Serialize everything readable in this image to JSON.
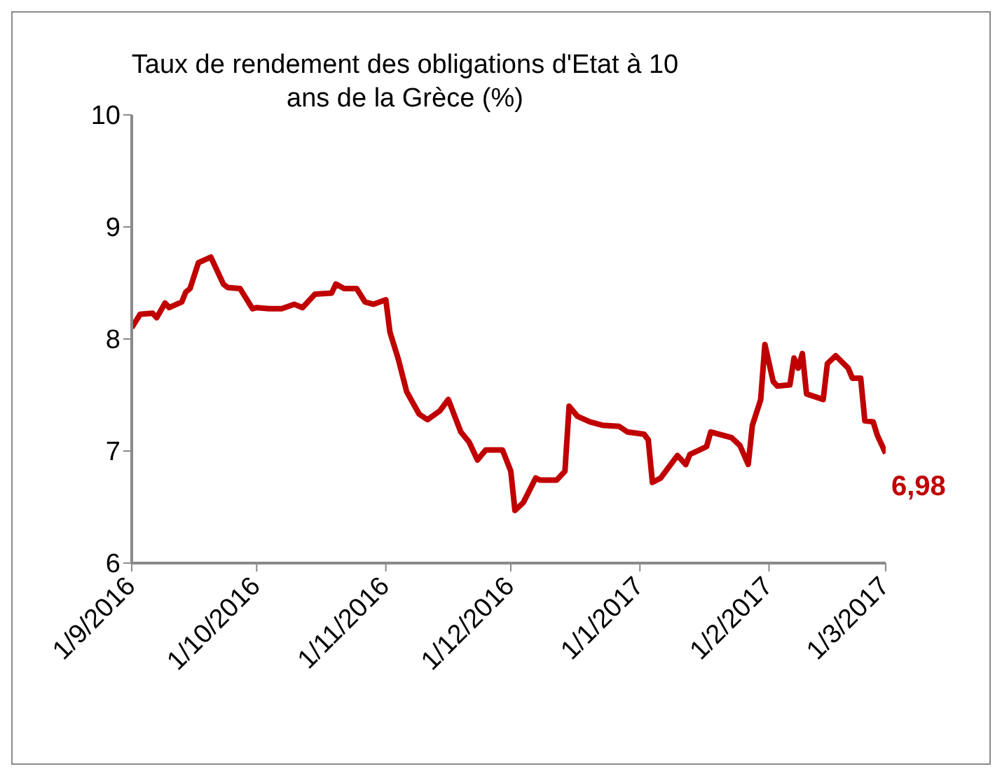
{
  "chart_data": {
    "type": "line",
    "title": "Taux de rendement des obligations d'Etat à 10 ans de la Grèce (%)",
    "x": [
      "2016-09-01",
      "2016-09-03",
      "2016-09-06",
      "2016-09-07",
      "2016-09-09",
      "2016-09-10",
      "2016-09-13",
      "2016-09-14",
      "2016-09-15",
      "2016-09-17",
      "2016-09-20",
      "2016-09-23",
      "2016-09-24",
      "2016-09-27",
      "2016-09-30",
      "2016-10-01",
      "2016-10-04",
      "2016-10-07",
      "2016-10-10",
      "2016-10-12",
      "2016-10-15",
      "2016-10-19",
      "2016-10-20",
      "2016-10-22",
      "2016-10-25",
      "2016-10-27",
      "2016-10-29",
      "2016-11-01",
      "2016-11-02",
      "2016-11-04",
      "2016-11-06",
      "2016-11-09",
      "2016-11-11",
      "2016-11-14",
      "2016-11-16",
      "2016-11-19",
      "2016-11-21",
      "2016-11-23",
      "2016-11-25",
      "2016-11-29",
      "2016-12-01",
      "2016-12-02",
      "2016-12-04",
      "2016-12-07",
      "2016-12-08",
      "2016-12-12",
      "2016-12-14",
      "2016-12-15",
      "2016-12-17",
      "2016-12-20",
      "2016-12-23",
      "2016-12-27",
      "2016-12-29",
      "2017-01-02",
      "2017-01-03",
      "2017-01-04",
      "2017-01-06",
      "2017-01-10",
      "2017-01-12",
      "2017-01-13",
      "2017-01-17",
      "2017-01-18",
      "2017-01-23",
      "2017-01-25",
      "2017-01-27",
      "2017-01-28",
      "2017-01-30",
      "2017-01-31",
      "2017-02-02",
      "2017-02-03",
      "2017-02-06",
      "2017-02-07",
      "2017-02-08",
      "2017-02-09",
      "2017-02-10",
      "2017-02-14",
      "2017-02-15",
      "2017-02-17",
      "2017-02-20",
      "2017-02-21",
      "2017-02-23",
      "2017-02-24",
      "2017-02-26",
      "2017-02-27",
      "2017-03-01"
    ],
    "series": [
      {
        "color": "#c00000",
        "values": [
          8.1,
          8.22,
          8.23,
          8.19,
          8.32,
          8.28,
          8.33,
          8.42,
          8.45,
          8.68,
          8.73,
          8.49,
          8.46,
          8.45,
          8.27,
          8.28,
          8.27,
          8.27,
          8.31,
          8.28,
          8.4,
          8.41,
          8.49,
          8.45,
          8.45,
          8.33,
          8.31,
          8.35,
          8.06,
          7.82,
          7.53,
          7.33,
          7.28,
          7.36,
          7.46,
          7.17,
          7.08,
          6.92,
          7.01,
          7.01,
          6.82,
          6.47,
          6.54,
          6.76,
          6.74,
          6.74,
          6.82,
          7.4,
          7.31,
          7.26,
          7.23,
          7.22,
          7.17,
          7.15,
          7.1,
          6.72,
          6.76,
          6.96,
          6.88,
          6.97,
          7.04,
          7.17,
          7.12,
          7.05,
          6.88,
          7.23,
          7.46,
          7.95,
          7.62,
          7.58,
          7.59,
          7.83,
          7.74,
          7.87,
          7.51,
          7.46,
          7.78,
          7.85,
          7.74,
          7.65,
          7.65,
          7.27,
          7.26,
          7.14,
          6.98
        ],
        "value_labels": [
          null,
          null,
          null,
          null,
          null,
          null,
          null,
          null,
          null,
          null,
          null,
          null,
          null,
          null,
          null,
          null,
          null,
          null,
          null,
          null,
          null,
          null,
          null,
          null,
          null,
          null,
          null,
          null,
          null,
          null,
          null,
          null,
          null,
          null,
          null,
          null,
          null,
          null,
          null,
          null,
          null,
          null,
          null,
          null,
          null,
          null,
          null,
          null,
          null,
          null,
          null,
          null,
          null,
          null,
          null,
          null,
          null,
          null,
          null,
          null,
          null,
          null,
          null,
          null,
          null,
          null,
          null,
          null,
          null,
          null,
          null,
          null,
          null,
          null,
          null,
          null,
          null,
          null,
          null,
          null,
          null,
          null,
          null,
          null,
          "6,98"
        ]
      }
    ],
    "xlim": [
      "2016-09-01",
      "2017-03-01"
    ],
    "xticks": [
      {
        "value": "2016-09-01",
        "label": "1/9/2016"
      },
      {
        "value": "2016-10-01",
        "label": "1/10/2016"
      },
      {
        "value": "2016-11-01",
        "label": "1/11/2016"
      },
      {
        "value": "2016-12-01",
        "label": "1/12/2016"
      },
      {
        "value": "2017-01-01",
        "label": "1/1/2017"
      },
      {
        "value": "2017-02-01",
        "label": "1/2/2017"
      },
      {
        "value": "2017-03-01",
        "label": "1/3/2017"
      }
    ],
    "ylim": [
      6,
      10
    ],
    "yticks": [
      6,
      7,
      8,
      9,
      10
    ],
    "grid": false,
    "legend": false,
    "marker": "none",
    "line_style": "solid"
  }
}
